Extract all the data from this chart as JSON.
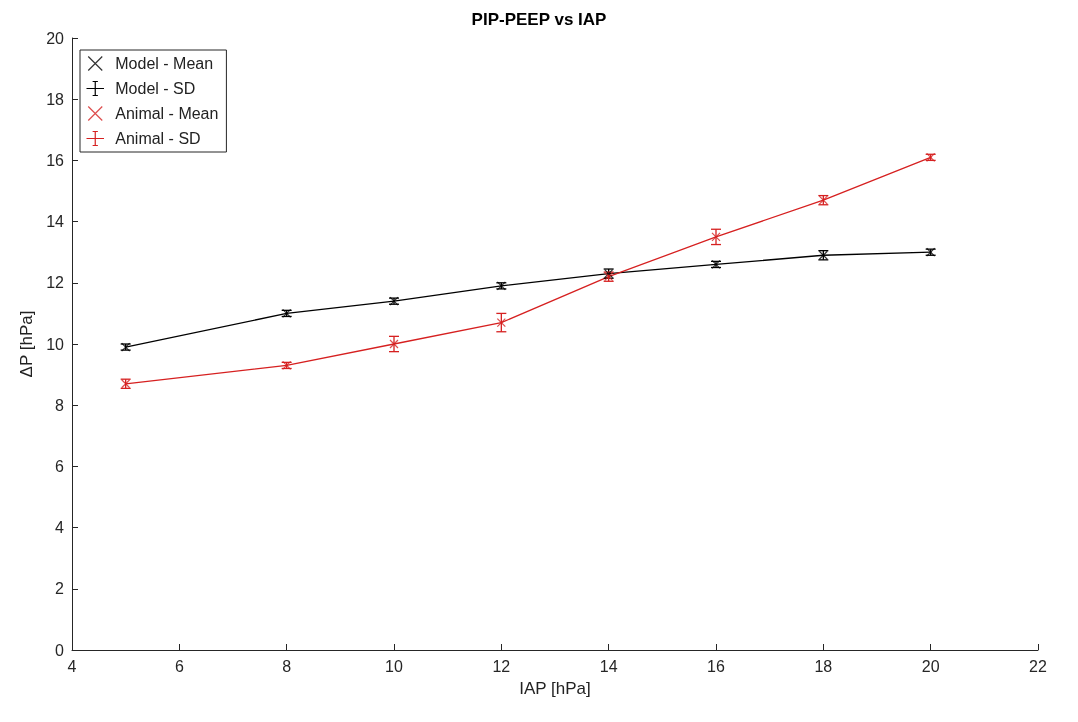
{
  "chart_data": {
    "type": "line",
    "title": "PIP-PEEP vs IAP",
    "xlabel": "IAP [hPa]",
    "ylabel": "ΔP [hPa]",
    "x": [
      5,
      8,
      10,
      12,
      14,
      16,
      18,
      20
    ],
    "series": [
      {
        "name": "Model - Mean",
        "type": "scatter",
        "marker": "cross",
        "color": "#000000",
        "values": [
          9.9,
          11.0,
          11.4,
          11.9,
          12.3,
          12.6,
          12.9,
          13.0
        ]
      },
      {
        "name": "Model - SD",
        "type": "line",
        "marker": "none",
        "line_style": "solid",
        "color": "#000000",
        "values": [
          9.9,
          11.0,
          11.4,
          11.9,
          12.3,
          12.6,
          12.9,
          13.0
        ],
        "errors": [
          0.1,
          0.1,
          0.1,
          0.1,
          0.15,
          0.1,
          0.15,
          0.1
        ]
      },
      {
        "name": "Animal - Mean",
        "type": "scatter",
        "marker": "cross",
        "color": "#d62020",
        "values": [
          8.7,
          9.3,
          10.0,
          10.7,
          12.2,
          13.5,
          14.7,
          16.1
        ]
      },
      {
        "name": "Animal - SD",
        "type": "line",
        "marker": "none",
        "line_style": "solid",
        "color": "#d62020",
        "values": [
          8.7,
          9.3,
          10.0,
          10.7,
          12.2,
          13.5,
          14.7,
          16.1
        ],
        "errors": [
          0.15,
          0.1,
          0.25,
          0.3,
          0.15,
          0.25,
          0.15,
          0.1
        ]
      }
    ],
    "xlim": [
      4,
      22
    ],
    "xticks": [
      4,
      6,
      8,
      10,
      12,
      14,
      16,
      18,
      20,
      22
    ],
    "ylim": [
      0,
      20
    ],
    "yticks": [
      0,
      2,
      4,
      6,
      8,
      10,
      12,
      14,
      16,
      18,
      20
    ],
    "grid": false,
    "legend": "top left"
  }
}
